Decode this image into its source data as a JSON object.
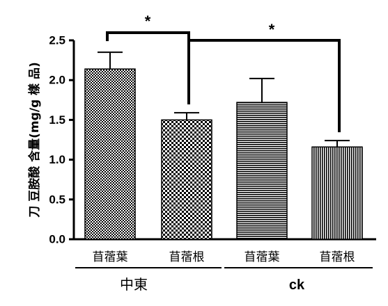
{
  "chart_data": {
    "type": "bar",
    "ylabel": "刀 豆胺酸 含量(mg/g 樣 品)",
    "ylim": [
      0,
      2.5
    ],
    "yticks": [
      "0.0",
      "0.5",
      "1.0",
      "1.5",
      "2.0",
      "2.5"
    ],
    "categories": [
      "苜蓿葉",
      "苜蓿根",
      "苜蓿葉",
      "苜蓿根"
    ],
    "groups": [
      {
        "label": "中東",
        "categories": [
          0,
          1
        ]
      },
      {
        "label": "ck",
        "categories": [
          2,
          3
        ]
      }
    ],
    "values": [
      2.14,
      1.5,
      1.72,
      1.16
    ],
    "errors": [
      0.21,
      0.09,
      0.3,
      0.08
    ],
    "patterns": [
      "fine-checker",
      "checker",
      "horizontal-lines",
      "vertical-lines"
    ],
    "significance": [
      {
        "between": [
          0,
          1
        ],
        "label": "*"
      },
      {
        "between": [
          1,
          3
        ],
        "label": "*"
      }
    ],
    "grid": false,
    "legend": "none"
  }
}
